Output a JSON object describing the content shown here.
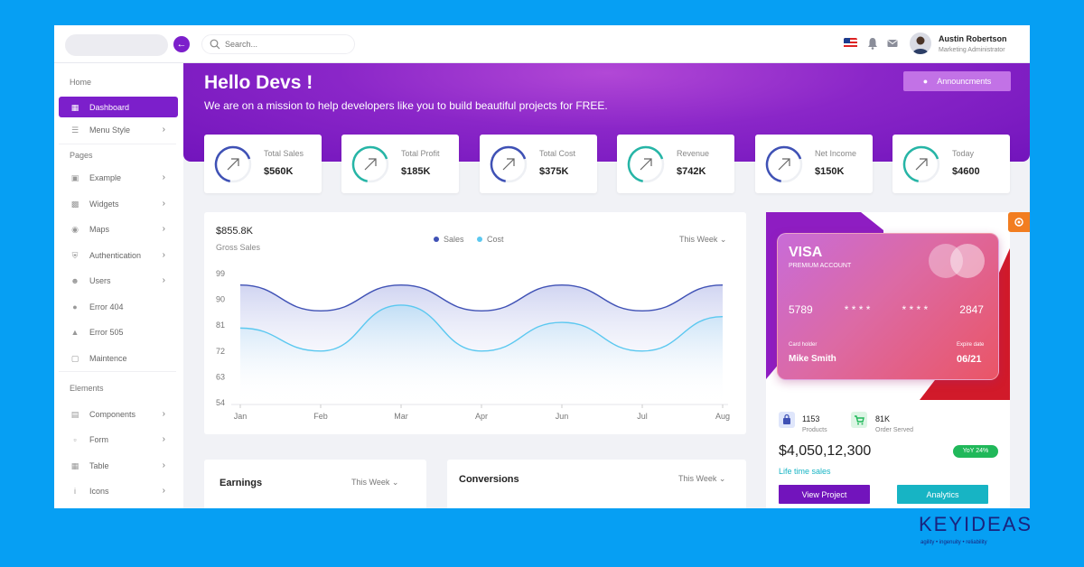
{
  "header": {
    "search_placeholder": "Search...",
    "user_name": "Austin Robertson",
    "user_role": "Marketing Administrator"
  },
  "sidebar": {
    "sections": {
      "home": "Home",
      "pages": "Pages",
      "elements": "Elements"
    },
    "items": [
      {
        "label": "Dashboard",
        "icon": "grid-icon",
        "active": true
      },
      {
        "label": "Menu Style",
        "icon": "menu-icon",
        "chevron": true
      },
      {
        "label": "Example",
        "icon": "example-icon",
        "chevron": true
      },
      {
        "label": "Widgets",
        "icon": "widgets-icon",
        "chevron": true
      },
      {
        "label": "Maps",
        "icon": "map-pin-icon",
        "chevron": true
      },
      {
        "label": "Authentication",
        "icon": "shield-icon",
        "chevron": true
      },
      {
        "label": "Users",
        "icon": "users-icon",
        "chevron": true
      },
      {
        "label": "Error 404",
        "icon": "error-icon"
      },
      {
        "label": "Error 505",
        "icon": "warning-icon"
      },
      {
        "label": "Maintence",
        "icon": "maintenance-icon"
      },
      {
        "label": "Components",
        "icon": "components-icon",
        "chevron": true
      },
      {
        "label": "Form",
        "icon": "form-icon",
        "chevron": true
      },
      {
        "label": "Table",
        "icon": "table-icon",
        "chevron": true
      },
      {
        "label": "Icons",
        "icon": "info-icon",
        "chevron": true
      }
    ]
  },
  "banner": {
    "title": "Hello Devs !",
    "subtitle": "We are on a mission to help developers like you to build beautiful projects for FREE.",
    "announce_label": "Announcments"
  },
  "stats": [
    {
      "label": "Total Sales",
      "value": "$560K",
      "color": "#3f51b5"
    },
    {
      "label": "Total Profit",
      "value": "$185K",
      "color": "#26b5a6"
    },
    {
      "label": "Total Cost",
      "value": "$375K",
      "color": "#3f51b5"
    },
    {
      "label": "Revenue",
      "value": "$742K",
      "color": "#26b5a6"
    },
    {
      "label": "Net Income",
      "value": "$150K",
      "color": "#3f51b5"
    },
    {
      "label": "Today",
      "value": "$4600",
      "color": "#26b5a6"
    }
  ],
  "chart": {
    "total": "$855.8K",
    "subtitle": "Gross Sales",
    "period": "This Week"
  },
  "chart_data": {
    "type": "area",
    "categories": [
      "Jan",
      "Feb",
      "Mar",
      "Apr",
      "Jun",
      "Jul",
      "Aug"
    ],
    "yticks": [
      99,
      90,
      81,
      72,
      63,
      54
    ],
    "ylim": [
      54,
      99
    ],
    "series": [
      {
        "name": "Sales",
        "color": "#3f51b5",
        "values": [
          95,
          86,
          95,
          86,
          95,
          86,
          95
        ]
      },
      {
        "name": "Cost",
        "color": "#5bc8f0",
        "values": [
          80,
          72,
          88,
          72,
          82,
          72,
          84
        ]
      }
    ],
    "grid": false,
    "legend": "top-center"
  },
  "visa": {
    "brand": "VISA",
    "type": "PREMIUM ACCOUNT",
    "number": [
      "5789",
      "* * * *",
      "* * * *",
      "2847"
    ],
    "holder_label": "Card holder",
    "holder": "Mike Smith",
    "expiry_label": "Expire date",
    "expiry": "06/21"
  },
  "summary": {
    "products_value": "1153",
    "products_label": "Products",
    "orders_value": "81K",
    "orders_label": "Order Served",
    "lifetime_value": "$4,050,12,300",
    "lifetime_label": "Life time sales",
    "yoy": "YoY 24%",
    "view_project": "View Project",
    "analytics": "Analytics"
  },
  "earnings": {
    "title": "Earnings",
    "period": "This Week"
  },
  "conversions": {
    "title": "Conversions",
    "period": "This Week"
  },
  "brand": {
    "name": "KEYIDEAS",
    "tagline": "agility  •  ingenuity  •  reliability"
  },
  "colors": {
    "primary": "#7c1fcb",
    "teal": "#17b4c4",
    "green": "#20b85a",
    "orange": "#f27d20",
    "page_bg": "#069ff3"
  }
}
